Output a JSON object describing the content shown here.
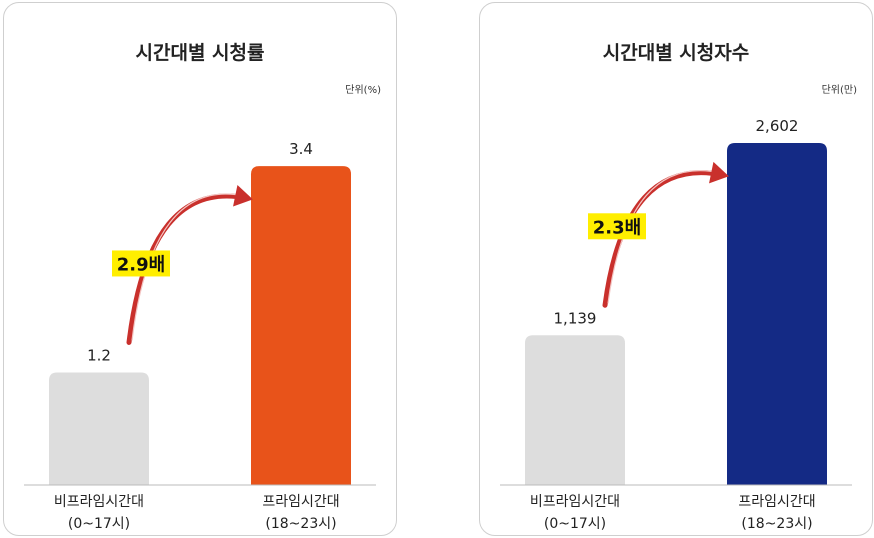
{
  "chart_data": [
    {
      "type": "bar",
      "title": "시간대별 시청률",
      "unit": "단위(%)",
      "categories": [
        {
          "line1": "비프라임시간대",
          "line2": "(0~17시)"
        },
        {
          "line1": "프라임시간대",
          "line2": "(18~23시)"
        }
      ],
      "values": [
        1.2,
        3.4
      ],
      "value_labels": [
        "1.2",
        "3.4"
      ],
      "colors": [
        "#dddddd",
        "#e8531a"
      ],
      "ylim": [
        0,
        3.7
      ],
      "annotation": {
        "text": "2.9배",
        "highlight": "#ffee00",
        "arrow_color": "#c9302c"
      }
    },
    {
      "type": "bar",
      "title": "시간대별 시청자수",
      "unit": "단위(만)",
      "categories": [
        {
          "line1": "비프라임시간대",
          "line2": "(0~17시)"
        },
        {
          "line1": "프라임시간대",
          "line2": "(18~23시)"
        }
      ],
      "values": [
        1139,
        2602
      ],
      "value_labels": [
        "1,139",
        "2,602"
      ],
      "colors": [
        "#dddddd",
        "#142a85"
      ],
      "ylim": [
        0,
        2640
      ],
      "annotation": {
        "text": "2.3배",
        "highlight": "#ffee00",
        "arrow_color": "#c9302c"
      }
    }
  ]
}
